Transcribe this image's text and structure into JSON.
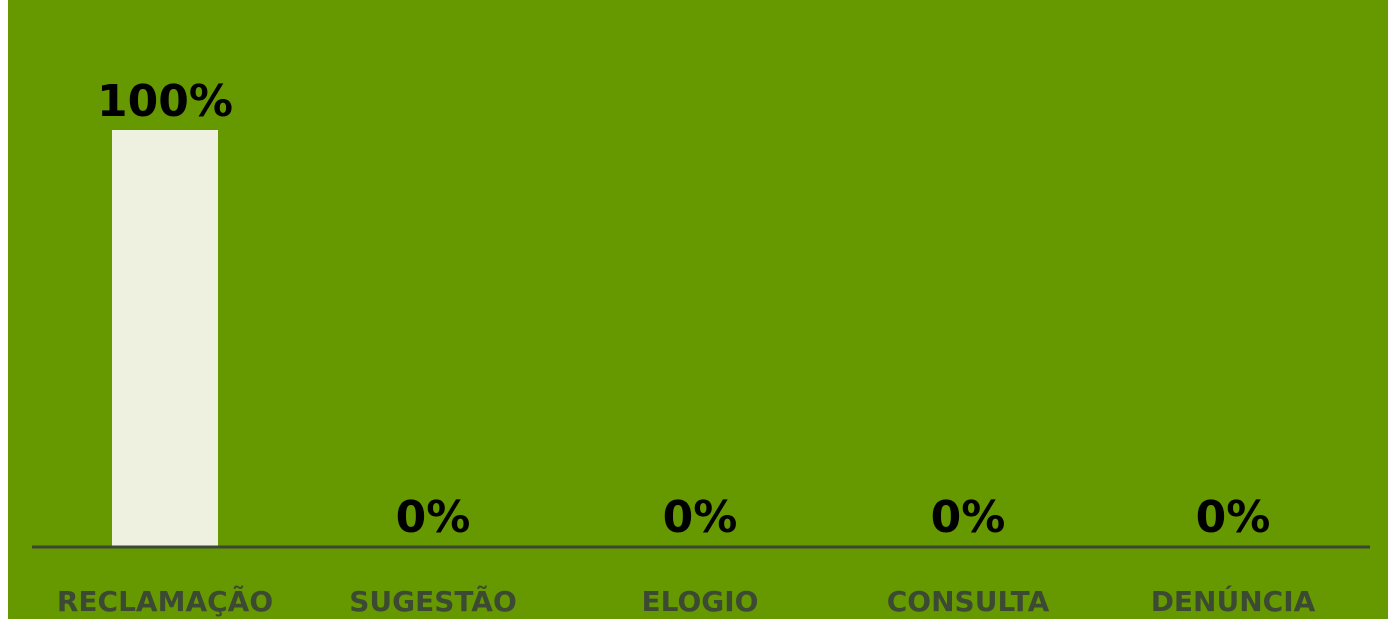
{
  "chart_data": {
    "type": "bar",
    "categories": [
      "RECLAMAÇÃO",
      "SUGESTÃO",
      "ELOGIO",
      "CONSULTA",
      "DENÚNCIA"
    ],
    "values": [
      100,
      0,
      0,
      0,
      0
    ],
    "data_labels": [
      "100%",
      "0%",
      "0%",
      "0%",
      "0%"
    ],
    "ylim": [
      0,
      100
    ],
    "grid": false,
    "colors": {
      "background": "#669900",
      "bar": "#eef1e0",
      "axis": "#3c4636",
      "value_label": "#000000",
      "category_label": "#3d4a33"
    }
  }
}
